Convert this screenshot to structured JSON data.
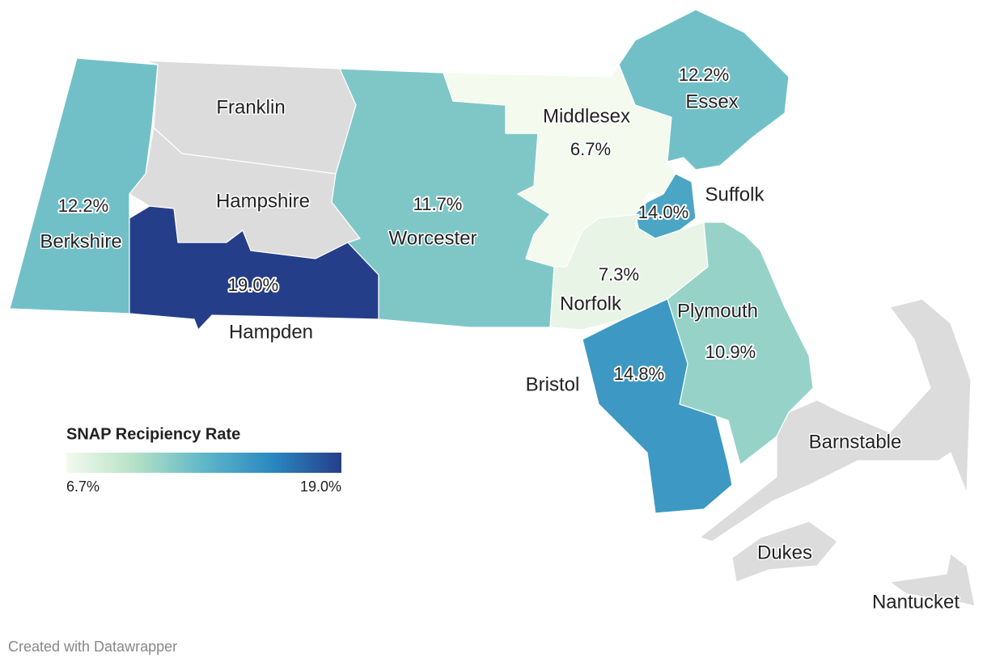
{
  "legend": {
    "title": "SNAP Recipiency Rate",
    "min": {
      "value": 6.7,
      "label": "6.7%"
    },
    "max": {
      "value": 19.0,
      "label": "19.0%"
    },
    "colors": [
      "#f4faee",
      "#b5e1c6",
      "#5fb7c8",
      "#2a88c0",
      "#253e8a"
    ],
    "no_data_color": "#dcdcdc"
  },
  "regions": [
    {
      "name": "Berkshire",
      "value": 12.2,
      "value_label": "12.2%"
    },
    {
      "name": "Franklin",
      "value": null
    },
    {
      "name": "Hampshire",
      "value": null
    },
    {
      "name": "Hampden",
      "value": 19.0,
      "value_label": "19.0%"
    },
    {
      "name": "Worcester",
      "value": 11.7,
      "value_label": "11.7%"
    },
    {
      "name": "Middlesex",
      "value": 6.7,
      "value_label": "6.7%"
    },
    {
      "name": "Essex",
      "value": 12.2,
      "value_label": "12.2%"
    },
    {
      "name": "Suffolk",
      "value": 14.0,
      "value_label": "14.0%"
    },
    {
      "name": "Norfolk",
      "value": 7.3,
      "value_label": "7.3%"
    },
    {
      "name": "Plymouth",
      "value": 10.9,
      "value_label": "10.9%"
    },
    {
      "name": "Bristol",
      "value": 14.8,
      "value_label": "14.8%"
    },
    {
      "name": "Barnstable",
      "value": null
    },
    {
      "name": "Dukes",
      "value": null
    },
    {
      "name": "Nantucket",
      "value": null
    }
  ],
  "footer": "Created with Datawrapper"
}
